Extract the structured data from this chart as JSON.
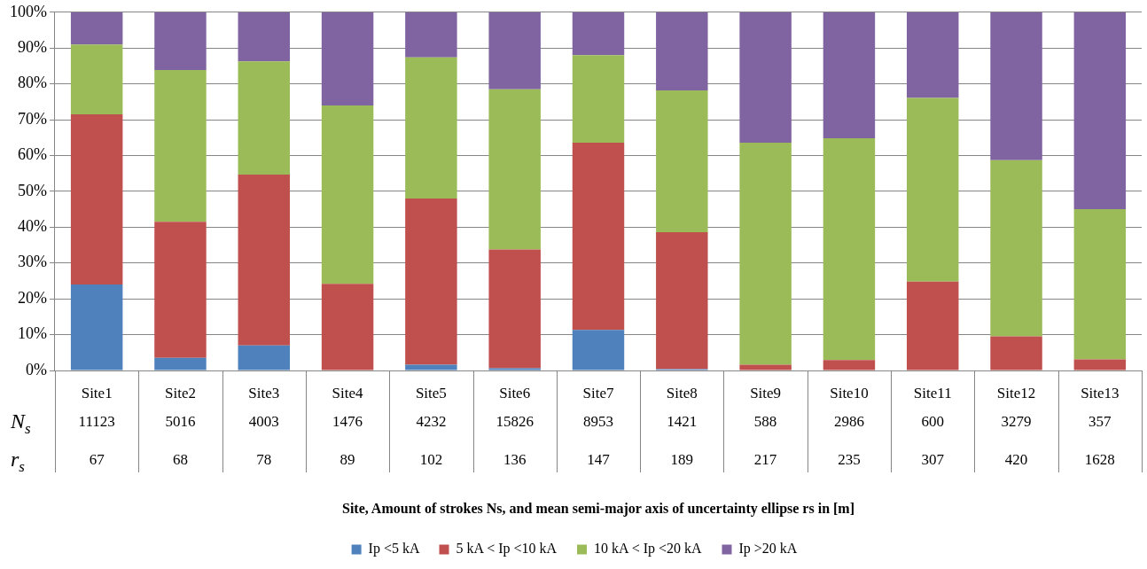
{
  "chart_data": {
    "type": "bar",
    "stacked": true,
    "categories": [
      "Site1",
      "Site2",
      "Site3",
      "Site4",
      "Site5",
      "Site6",
      "Site7",
      "Site8",
      "Site9",
      "Site10",
      "Site11",
      "Site12",
      "Site13"
    ],
    "series": [
      {
        "name": "Ip <5 kA",
        "color": "#4f81bd",
        "values": [
          24,
          3.5,
          7,
          0,
          1.6,
          0.6,
          11.3,
          0.4,
          0,
          0,
          0,
          0,
          0
        ]
      },
      {
        "name": "5 kA < Ip <10 kA",
        "color": "#c0504d",
        "values": [
          47.5,
          38,
          47.7,
          24.2,
          46.4,
          33.2,
          52.3,
          38.2,
          1.6,
          2.9,
          24.8,
          9.5,
          3.1
        ]
      },
      {
        "name": "10 kA < Ip <20 kA",
        "color": "#9bbb59",
        "values": [
          19.5,
          42.4,
          31.6,
          49.8,
          39.4,
          44.7,
          24.4,
          39.6,
          62,
          61.9,
          51.3,
          49.2,
          41.9
        ]
      },
      {
        "name": "Ip >20 kA",
        "color": "#8064a2",
        "values": [
          9,
          16.1,
          13.7,
          26,
          12.6,
          21.5,
          12,
          21.8,
          36.4,
          35.2,
          23.9,
          41.3,
          55
        ]
      }
    ],
    "ylim": [
      0,
      100
    ],
    "yticks": [
      {
        "value": 0,
        "label": "0%"
      },
      {
        "value": 10,
        "label": "10%"
      },
      {
        "value": 20,
        "label": "20%"
      },
      {
        "value": 30,
        "label": "30%"
      },
      {
        "value": 40,
        "label": "40%"
      },
      {
        "value": 50,
        "label": "50%"
      },
      {
        "value": 60,
        "label": "60%"
      },
      {
        "value": 70,
        "label": "70%"
      },
      {
        "value": 80,
        "label": "80%"
      },
      {
        "value": 90,
        "label": "90%"
      },
      {
        "value": 100,
        "label": "100%"
      }
    ],
    "grid": "y",
    "legend": "bottom",
    "annotations": [
      "N$_{s}$",
      "11123",
      "5016",
      "4003",
      "1476",
      "4232",
      "15826",
      "8953",
      "1421",
      "588",
      "2986",
      "600",
      "3279",
      "357",
      "r$_{s}$",
      "67",
      "68",
      "78",
      "89",
      "102",
      "136",
      "147",
      "189",
      "217",
      "235",
      "307",
      "420",
      "1628",
      "Site, Amount of strokes Ns, and mean semi-major axis of uncertainty ellipse rs in [m]"
    ]
  }
}
